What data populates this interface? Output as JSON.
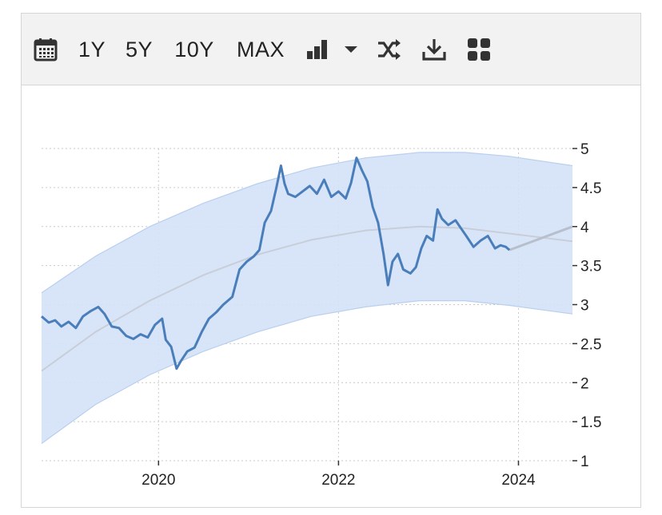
{
  "toolbar": {
    "calendar_icon": "calendar-icon",
    "ranges": [
      "1Y",
      "5Y",
      "10Y",
      "MAX"
    ],
    "chart_type_icon": "bar-chart-icon",
    "dropdown_icon": "caret-down-icon",
    "compare_icon": "shuffle-icon",
    "download_icon": "download-icon",
    "apps_icon": "grid-icon"
  },
  "chart_data": {
    "type": "line",
    "title": "",
    "xlabel": "",
    "ylabel": "",
    "x_ticks": [
      "2020",
      "2022",
      "2024"
    ],
    "y_ticks": [
      "5",
      "4.5",
      "4",
      "3.5",
      "3",
      "2.5",
      "2",
      "1.5",
      "1"
    ],
    "ylim": [
      1,
      5
    ],
    "xlim": [
      2018.7,
      2024.6
    ],
    "grid": true,
    "y_axis_side": "right",
    "colors": {
      "line": "#4a7ebb",
      "band": "#d4e2f7",
      "band_edge": "#b9cfee",
      "trend": "#c8ced8"
    },
    "series": [
      {
        "values": [
          [
            2018.7,
            2.85
          ],
          [
            2018.78,
            2.77
          ],
          [
            2018.85,
            2.8
          ],
          [
            2018.92,
            2.72
          ],
          [
            2019.0,
            2.78
          ],
          [
            2019.08,
            2.7
          ],
          [
            2019.16,
            2.85
          ],
          [
            2019.25,
            2.92
          ],
          [
            2019.33,
            2.97
          ],
          [
            2019.4,
            2.88
          ],
          [
            2019.48,
            2.72
          ],
          [
            2019.56,
            2.7
          ],
          [
            2019.64,
            2.6
          ],
          [
            2019.72,
            2.56
          ],
          [
            2019.8,
            2.62
          ],
          [
            2019.88,
            2.58
          ],
          [
            2019.96,
            2.74
          ],
          [
            2020.04,
            2.82
          ],
          [
            2020.08,
            2.55
          ],
          [
            2020.14,
            2.46
          ],
          [
            2020.2,
            2.18
          ],
          [
            2020.25,
            2.28
          ],
          [
            2020.32,
            2.4
          ],
          [
            2020.4,
            2.45
          ],
          [
            2020.48,
            2.65
          ],
          [
            2020.56,
            2.82
          ],
          [
            2020.64,
            2.9
          ],
          [
            2020.72,
            3.0
          ],
          [
            2020.82,
            3.1
          ],
          [
            2020.9,
            3.45
          ],
          [
            2020.98,
            3.55
          ],
          [
            2021.06,
            3.62
          ],
          [
            2021.12,
            3.7
          ],
          [
            2021.18,
            4.05
          ],
          [
            2021.25,
            4.2
          ],
          [
            2021.31,
            4.5
          ],
          [
            2021.36,
            4.78
          ],
          [
            2021.4,
            4.55
          ],
          [
            2021.44,
            4.42
          ],
          [
            2021.52,
            4.38
          ],
          [
            2021.6,
            4.45
          ],
          [
            2021.68,
            4.52
          ],
          [
            2021.76,
            4.42
          ],
          [
            2021.84,
            4.6
          ],
          [
            2021.92,
            4.38
          ],
          [
            2022.0,
            4.45
          ],
          [
            2022.08,
            4.36
          ],
          [
            2022.14,
            4.56
          ],
          [
            2022.2,
            4.88
          ],
          [
            2022.26,
            4.72
          ],
          [
            2022.32,
            4.58
          ],
          [
            2022.38,
            4.25
          ],
          [
            2022.44,
            4.05
          ],
          [
            2022.5,
            3.65
          ],
          [
            2022.55,
            3.25
          ],
          [
            2022.6,
            3.55
          ],
          [
            2022.66,
            3.65
          ],
          [
            2022.72,
            3.45
          ],
          [
            2022.8,
            3.4
          ],
          [
            2022.86,
            3.48
          ],
          [
            2022.92,
            3.72
          ],
          [
            2022.98,
            3.88
          ],
          [
            2023.05,
            3.82
          ],
          [
            2023.1,
            4.22
          ],
          [
            2023.15,
            4.1
          ],
          [
            2023.22,
            4.02
          ],
          [
            2023.3,
            4.08
          ],
          [
            2023.36,
            3.98
          ],
          [
            2023.42,
            3.88
          ],
          [
            2023.5,
            3.74
          ],
          [
            2023.58,
            3.82
          ],
          [
            2023.66,
            3.88
          ],
          [
            2023.74,
            3.72
          ],
          [
            2023.8,
            3.76
          ],
          [
            2023.86,
            3.74
          ],
          [
            2023.9,
            3.7
          ]
        ]
      }
    ],
    "trend": [
      [
        2018.7,
        2.15
      ],
      [
        2019.3,
        2.65
      ],
      [
        2019.9,
        3.05
      ],
      [
        2020.5,
        3.38
      ],
      [
        2021.1,
        3.64
      ],
      [
        2021.7,
        3.83
      ],
      [
        2022.3,
        3.95
      ],
      [
        2022.9,
        4.0
      ],
      [
        2023.4,
        3.98
      ],
      [
        2023.9,
        3.91
      ],
      [
        2024.6,
        3.81
      ]
    ],
    "forecast": [
      [
        2023.9,
        3.7
      ],
      [
        2024.6,
        4.0
      ]
    ],
    "band_upper": [
      [
        2018.7,
        3.15
      ],
      [
        2019.3,
        3.62
      ],
      [
        2019.9,
        4.0
      ],
      [
        2020.5,
        4.3
      ],
      [
        2021.1,
        4.55
      ],
      [
        2021.7,
        4.75
      ],
      [
        2022.3,
        4.88
      ],
      [
        2022.9,
        4.95
      ],
      [
        2023.4,
        4.95
      ],
      [
        2023.9,
        4.9
      ],
      [
        2024.6,
        4.78
      ]
    ],
    "band_lower": [
      [
        2018.7,
        1.22
      ],
      [
        2019.3,
        1.72
      ],
      [
        2019.9,
        2.1
      ],
      [
        2020.5,
        2.4
      ],
      [
        2021.1,
        2.65
      ],
      [
        2021.7,
        2.85
      ],
      [
        2022.3,
        2.97
      ],
      [
        2022.9,
        3.05
      ],
      [
        2023.4,
        3.05
      ],
      [
        2023.9,
        2.99
      ],
      [
        2024.6,
        2.88
      ]
    ]
  }
}
